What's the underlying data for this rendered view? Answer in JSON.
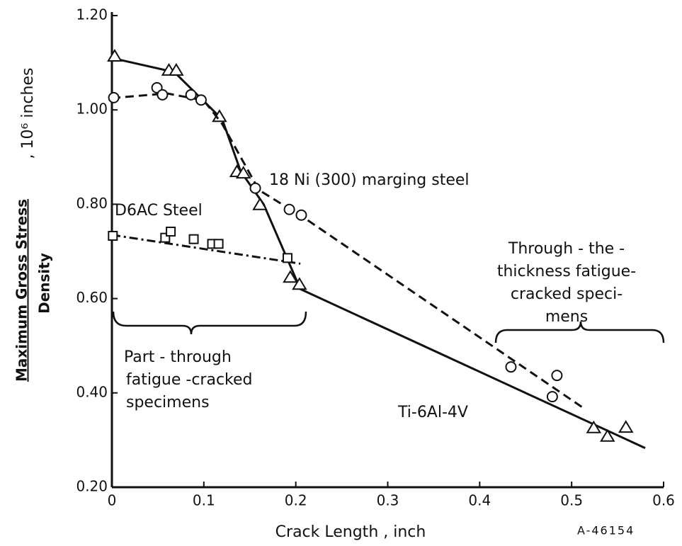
{
  "chart_data": {
    "type": "line",
    "x_label": "Crack Length , inch",
    "y_label": {
      "numerator": "Maximum Gross Stress",
      "denominator": "Density",
      "unit": ", 10⁶ inches"
    },
    "figure_id": "A-46154",
    "xlim": [
      0,
      0.6
    ],
    "xticks": [
      0,
      0.1,
      0.2,
      0.3,
      0.4,
      0.5,
      0.6
    ],
    "ylim": [
      0.2,
      1.2
    ],
    "yticks": [
      {
        "value": 0.2,
        "label": "0.20"
      },
      {
        "value": 0.4,
        "label": "0.40"
      },
      {
        "value": 0.6,
        "label": "0.60"
      },
      {
        "value": 0.8,
        "label": "0.80"
      },
      {
        "value": 1.0,
        "label": "1.00"
      },
      {
        "value": 1.2,
        "label": "1.20"
      }
    ],
    "grid": false,
    "series": [
      {
        "name": "Ti-6Al-4V",
        "color": "#111111",
        "marker": "triangle",
        "line_style": "solid",
        "x": [
          0.003,
          0.062,
          0.07,
          0.117,
          0.136,
          0.143,
          0.161,
          0.194,
          0.204,
          0.524,
          0.539,
          0.559
        ],
        "values": [
          1.113,
          1.083,
          1.083,
          0.985,
          0.868,
          0.865,
          0.798,
          0.644,
          0.629,
          0.325,
          0.307,
          0.326
        ],
        "line_x": [
          0,
          0.068,
          0.12,
          0.14,
          0.165,
          0.205,
          0.58
        ],
        "line_values": [
          1.11,
          1.08,
          0.98,
          0.87,
          0.8,
          0.62,
          0.283
        ]
      },
      {
        "name": "18 Ni (300) marging steel",
        "color": "#111111",
        "marker": "circle",
        "line_style": "dashed",
        "x": [
          0.002,
          0.049,
          0.055,
          0.086,
          0.097,
          0.156,
          0.193,
          0.206,
          0.434,
          0.479,
          0.484
        ],
        "values": [
          1.026,
          1.047,
          1.032,
          1.032,
          1.021,
          0.834,
          0.789,
          0.777,
          0.455,
          0.392,
          0.437
        ],
        "line_x": [
          0,
          0.06,
          0.1,
          0.12,
          0.16,
          0.21,
          0.515
        ],
        "line_values": [
          1.025,
          1.035,
          1.02,
          0.97,
          0.83,
          0.77,
          0.365
        ]
      },
      {
        "name": "D6AC Steel",
        "color": "#111111",
        "marker": "square",
        "line_style": "dashdot",
        "x": [
          0.001,
          0.058,
          0.064,
          0.089,
          0.109,
          0.116,
          0.191
        ],
        "values": [
          0.733,
          0.729,
          0.742,
          0.726,
          0.716,
          0.716,
          0.686
        ],
        "line_x": [
          0,
          0.205
        ],
        "line_values": [
          0.735,
          0.674
        ]
      }
    ],
    "annotations": [
      {
        "lines": [
          "Through - the -",
          "thickness fatigue-",
          "cracked speci-",
          "mens"
        ]
      },
      {
        "lines": [
          "Part - through",
          "fatigue -cracked",
          "specimens"
        ]
      }
    ]
  }
}
